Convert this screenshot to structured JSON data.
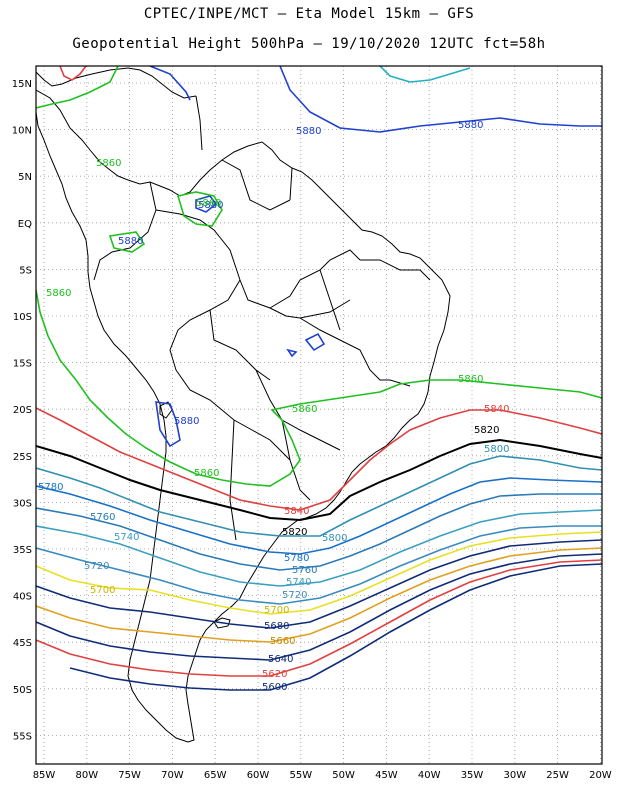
{
  "header": {
    "line1": "CPTEC/INPE/MCT –  Eta Model 15km – GFS",
    "line2": "Geopotential Height 500hPa – 19/10/2020 12UTC fct=58h"
  },
  "axes": {
    "lat_labels": [
      "15N",
      "10N",
      "5N",
      "EQ",
      "5S",
      "10S",
      "15S",
      "20S",
      "25S",
      "30S",
      "35S",
      "40S",
      "45S",
      "50S",
      "55S"
    ],
    "lon_labels": [
      "85W",
      "80W",
      "75W",
      "70W",
      "65W",
      "60W",
      "55W",
      "50W",
      "45W",
      "40W",
      "35W",
      "30W",
      "25W",
      "20W"
    ]
  },
  "contours": [
    {
      "value": "5880",
      "color": "#2040d0"
    },
    {
      "value": "5860",
      "color": "#20c020"
    },
    {
      "value": "5840",
      "color": "#e04040"
    },
    {
      "value": "5820",
      "color": "#000000"
    },
    {
      "value": "5800",
      "color": "#3090b0"
    },
    {
      "value": "5780",
      "color": "#1870c8"
    },
    {
      "value": "5760",
      "color": "#2a7ab8"
    },
    {
      "value": "5740",
      "color": "#3aa0c0"
    },
    {
      "value": "5720",
      "color": "#3a8ac0"
    },
    {
      "value": "5700",
      "color": "#e8e020"
    },
    {
      "value": "5680",
      "color": "#102c78"
    },
    {
      "value": "5660",
      "color": "#e0a020"
    },
    {
      "value": "5640",
      "color": "#102c78"
    },
    {
      "value": "5620",
      "color": "#e04040"
    },
    {
      "value": "5600",
      "color": "#102c78"
    }
  ],
  "labels": {
    "l5880a": "5880",
    "l5880b": "5880",
    "l5880c": "5880",
    "l5880d": "5880",
    "l5880e": "5880",
    "l5860a": "5860",
    "l5860b": "5860",
    "l5860c": "5860",
    "l5860d": "5860",
    "l5860e": "5860",
    "l5860f": "5860",
    "l5840a": "5840",
    "l5840b": "5840",
    "l5820a": "5820",
    "l5820b": "5820",
    "l5800a": "5800",
    "l5800b": "5800",
    "l5780a": "5780",
    "l5780b": "5780",
    "l5760a": "5760",
    "l5760b": "5760",
    "l5740a": "5740",
    "l5740b": "5740",
    "l5720a": "5720",
    "l5720b": "5720",
    "l5700a": "5700",
    "l5700b": "5700",
    "l5680": "5680",
    "l5660": "5660",
    "l5640": "5640",
    "l5620": "5620",
    "l5600": "5600"
  }
}
